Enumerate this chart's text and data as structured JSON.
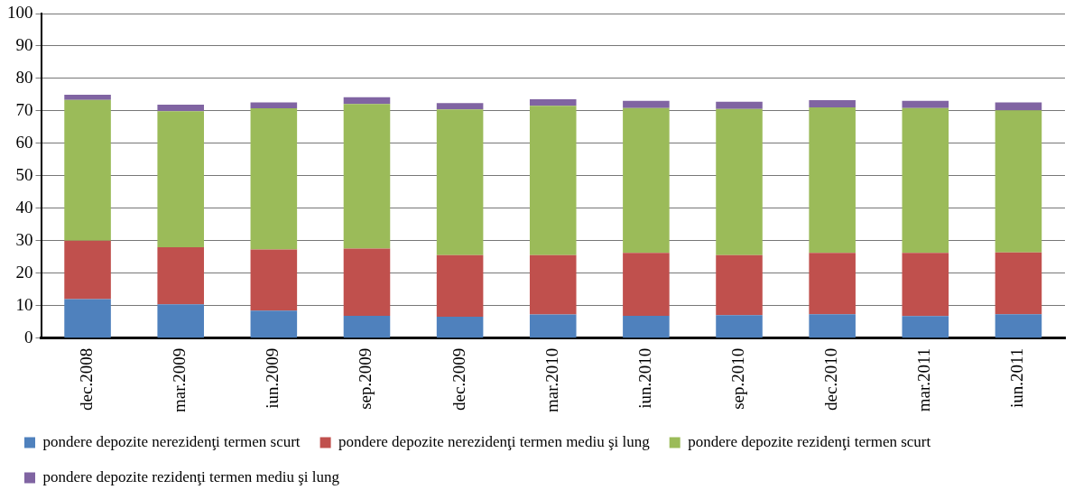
{
  "chart_data": {
    "type": "bar",
    "stacked": true,
    "categories": [
      "dec.2008",
      "mar.2009",
      "iun.2009",
      "sep.2009",
      "dec.2009",
      "mar.2010",
      "iun.2010",
      "sep.2010",
      "dec.2010",
      "mar.2011",
      "iun.2011"
    ],
    "series": [
      {
        "name": "pondere depozite nerezidenţi termen scurt",
        "color": "#4f81bd",
        "values": [
          12,
          10.4,
          8.5,
          6.9,
          6.6,
          7.3,
          6.9,
          7.1,
          7.4,
          6.8,
          7.4
        ]
      },
      {
        "name": "pondere depozite nerezidenţi termen mediu şi lung",
        "color": "#c0504d",
        "values": [
          18,
          17.6,
          18.8,
          20.7,
          19,
          18.3,
          19.4,
          18.5,
          18.9,
          19.5,
          19
        ]
      },
      {
        "name": "pondere depozite rezidenţi termen scurt",
        "color": "#9bbb59",
        "values": [
          43.4,
          41.9,
          43.5,
          44.5,
          44.9,
          46,
          44.6,
          45,
          44.8,
          44.6,
          43.8
        ]
      },
      {
        "name": "pondere depozite rezidenţi termen mediu şi lung",
        "color": "#8064a2",
        "values": [
          1.6,
          2,
          1.8,
          2.1,
          1.9,
          2,
          2.2,
          2.2,
          2.2,
          2.2,
          2.4
        ]
      }
    ],
    "ylim": [
      0,
      100
    ],
    "yticks": [
      0,
      10,
      20,
      30,
      40,
      50,
      60,
      70,
      80,
      90,
      100
    ],
    "grid": "y",
    "legend": "bottom"
  }
}
